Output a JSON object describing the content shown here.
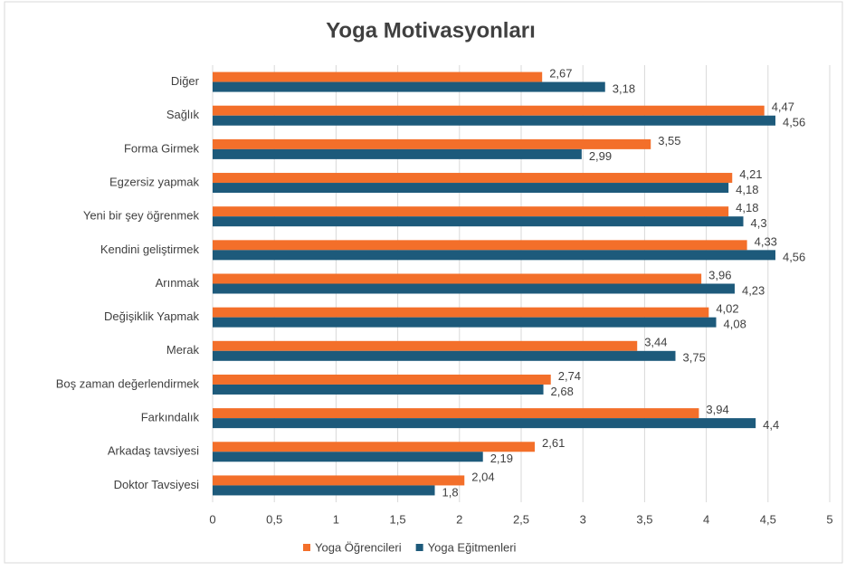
{
  "chart_data": {
    "type": "barh",
    "title": "Yoga Motivasyonları",
    "categories": [
      "Diğer",
      "Sağlık",
      "Forma Girmek",
      "Egzersiz yapmak",
      "Yeni bir şey öğrenmek",
      "Kendini geliştirmek",
      "Arınmak",
      "Değişiklik Yapmak",
      "Merak",
      "Boş zaman değerlendirmek",
      "Farkındalık",
      "Arkadaş tavsiyesi",
      "Doktor Tavsiyesi"
    ],
    "series": [
      {
        "name": "Yoga Öğrencileri",
        "color": "#f36f2a",
        "values": [
          2.67,
          4.47,
          3.55,
          4.21,
          4.18,
          4.33,
          3.96,
          4.02,
          3.44,
          2.74,
          3.94,
          2.61,
          2.04
        ],
        "value_labels": [
          "2,67",
          "4,47",
          "3,55",
          "4,21",
          "4,18",
          "4,33",
          "3,96",
          "4,02",
          "3,44",
          "2,74",
          "3,94",
          "2,61",
          "2,04"
        ]
      },
      {
        "name": "Yoga Eğitmenleri",
        "color": "#1d5a7b",
        "values": [
          3.18,
          4.56,
          2.99,
          4.18,
          4.3,
          4.56,
          4.23,
          4.08,
          3.75,
          2.68,
          4.4,
          2.19,
          1.8
        ],
        "value_labels": [
          "3,18",
          "4,56",
          "2,99",
          "4,18",
          "4,3",
          "4,56",
          "4,23",
          "4,08",
          "3,75",
          "2,68",
          "4,4",
          "2,19",
          "1,8"
        ]
      }
    ],
    "xlim": [
      0,
      5
    ],
    "xticks": [
      0,
      {
        "value": 0.5,
        "label": "0,5"
      },
      1,
      {
        "value": 1.5,
        "label": "1,5"
      },
      2,
      {
        "value": 2.5,
        "label": "2,5"
      },
      3,
      {
        "value": 3.5,
        "label": "3,5"
      },
      4,
      {
        "value": 4.5,
        "label": "4,5"
      },
      5
    ],
    "grid": true,
    "legend": "bottom"
  }
}
